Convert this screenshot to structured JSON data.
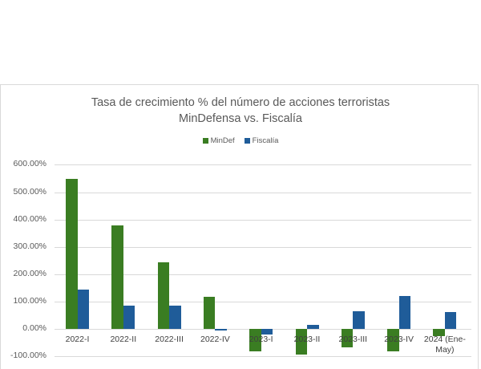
{
  "chart_data": {
    "type": "bar",
    "title": "Tasa de crecimiento % del número de acciones terroristas",
    "subtitle": "MinDefensa vs. Fiscalía",
    "xlabel": "",
    "ylabel": "",
    "categories": [
      "2022-I",
      "2022-II",
      "2022-III",
      "2022-IV",
      "2023-I",
      "2023-II",
      "2023-III",
      "2023-IV",
      "2024 (Ene-May)"
    ],
    "category_lines": [
      [
        "2022-I"
      ],
      [
        "2022-II"
      ],
      [
        "2022-III"
      ],
      [
        "2022-IV"
      ],
      [
        "2023-I"
      ],
      [
        "2023-II"
      ],
      [
        "2023-III"
      ],
      [
        "2023-IV"
      ],
      [
        "2024 (Ene-",
        "May)"
      ]
    ],
    "series": [
      {
        "name": "MinDef",
        "color": "#3a7d22",
        "values": [
          547,
          379,
          244,
          118,
          -82,
          -94,
          -67,
          -82,
          -27
        ]
      },
      {
        "name": "Fiscalía",
        "color": "#1f5c99",
        "values": [
          144,
          85,
          85,
          -3,
          -20,
          14,
          65,
          120,
          62
        ]
      }
    ],
    "ylim": [
      -100,
      600
    ],
    "yticks": [
      "600.00%",
      "500.00%",
      "400.00%",
      "300.00%",
      "200.00%",
      "100.00%",
      "0.00%",
      "-100.00%"
    ],
    "ytick_values": [
      600,
      500,
      400,
      300,
      200,
      100,
      0,
      -100
    ],
    "grid": true,
    "legend_position": "top"
  }
}
